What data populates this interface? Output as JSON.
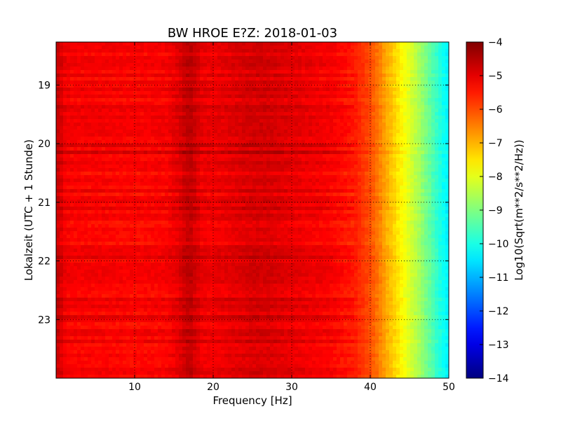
{
  "chart_data": {
    "type": "heatmap",
    "title": "BW HROE E?Z: 2018-01-03",
    "xlabel": "Frequency [Hz]",
    "ylabel": "Lokalzeit (UTC + 1 Stunde)",
    "xlim": [
      0,
      50
    ],
    "ylim": [
      18.2667,
      24.0
    ],
    "y_inverted": true,
    "x_ticks": [
      {
        "value": 10,
        "label": "10"
      },
      {
        "value": 20,
        "label": "20"
      },
      {
        "value": 30,
        "label": "30"
      },
      {
        "value": 40,
        "label": "40"
      },
      {
        "value": 50,
        "label": "50"
      }
    ],
    "y_ticks": [
      {
        "value": 19,
        "label": "19"
      },
      {
        "value": 20,
        "label": "20"
      },
      {
        "value": 21,
        "label": "21"
      },
      {
        "value": 22,
        "label": "22"
      },
      {
        "value": 23,
        "label": "23"
      }
    ],
    "grid": true,
    "grid_style": "dotted",
    "colormap": "jet",
    "colorbar": {
      "label": "Log10(Sqrt(m**2/s**2/Hz))",
      "range": [
        -14,
        -4
      ],
      "ticks": [
        {
          "value": -4,
          "label": "−4"
        },
        {
          "value": -5,
          "label": "−5"
        },
        {
          "value": -6,
          "label": "−6"
        },
        {
          "value": -7,
          "label": "−7"
        },
        {
          "value": -8,
          "label": "−8"
        },
        {
          "value": -9,
          "label": "−9"
        },
        {
          "value": -10,
          "label": "−10"
        },
        {
          "value": -11,
          "label": "−11"
        },
        {
          "value": -12,
          "label": "−12"
        },
        {
          "value": -13,
          "label": "−13"
        },
        {
          "value": -14,
          "label": "−14"
        }
      ]
    },
    "frequency_profile": {
      "frequency_hz": [
        0,
        0.5,
        1,
        2,
        5,
        10,
        14,
        15.5,
        16.5,
        17,
        17.5,
        18.5,
        20,
        23,
        25,
        27,
        30,
        35,
        38,
        40,
        41,
        42,
        43,
        44,
        45,
        46,
        47,
        48,
        49,
        50
      ],
      "level": [
        -4.7,
        -4.8,
        -5.1,
        -5.2,
        -5.2,
        -5.25,
        -5.2,
        -5.0,
        -4.7,
        -4.6,
        -4.75,
        -5.05,
        -5.1,
        -4.95,
        -4.85,
        -4.85,
        -5.0,
        -5.2,
        -5.5,
        -6.0,
        -6.4,
        -6.9,
        -7.3,
        -7.7,
        -8.1,
        -8.5,
        -9.0,
        -9.5,
        -10.0,
        -10.4
      ]
    }
  }
}
